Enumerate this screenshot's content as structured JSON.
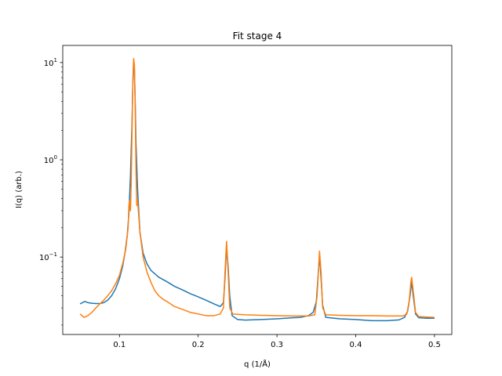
{
  "chart_data": {
    "type": "line",
    "title": "Fit stage 4",
    "xlabel": "q (1/Å)",
    "ylabel": "I(q) (arb.)",
    "xlim": [
      0.028,
      0.522
    ],
    "ylim": [
      0.016,
      15
    ],
    "yscale": "log",
    "grid": false,
    "x_ticks": [
      0.1,
      0.2,
      0.3,
      0.4,
      0.5
    ],
    "x_tick_labels": [
      "0.1",
      "0.2",
      "0.3",
      "0.4",
      "0.5"
    ],
    "y_ticks": [
      0.1,
      1,
      10
    ],
    "y_tick_labels_base": [
      "10",
      "10",
      "10"
    ],
    "y_tick_labels_exp": [
      "−1",
      "0",
      "1"
    ],
    "series": [
      {
        "color": "#1f77b4",
        "points": [
          [
            0.05,
            0.033
          ],
          [
            0.053,
            0.034
          ],
          [
            0.056,
            0.035
          ],
          [
            0.06,
            0.034
          ],
          [
            0.065,
            0.0335
          ],
          [
            0.07,
            0.0333
          ],
          [
            0.075,
            0.0333
          ],
          [
            0.08,
            0.034
          ],
          [
            0.085,
            0.036
          ],
          [
            0.09,
            0.04
          ],
          [
            0.095,
            0.047
          ],
          [
            0.1,
            0.06
          ],
          [
            0.104,
            0.08
          ],
          [
            0.107,
            0.11
          ],
          [
            0.11,
            0.17
          ],
          [
            0.112,
            0.28
          ],
          [
            0.114,
            0.7
          ],
          [
            0.116,
            2.5
          ],
          [
            0.117,
            6.0
          ],
          [
            0.118,
            10.0
          ],
          [
            0.119,
            8.5
          ],
          [
            0.12,
            4.0
          ],
          [
            0.121,
            1.5
          ],
          [
            0.123,
            0.5
          ],
          [
            0.126,
            0.18
          ],
          [
            0.13,
            0.11
          ],
          [
            0.135,
            0.085
          ],
          [
            0.14,
            0.073
          ],
          [
            0.15,
            0.062
          ],
          [
            0.16,
            0.056
          ],
          [
            0.17,
            0.05
          ],
          [
            0.18,
            0.046
          ],
          [
            0.19,
            0.042
          ],
          [
            0.2,
            0.039
          ],
          [
            0.21,
            0.036
          ],
          [
            0.22,
            0.033
          ],
          [
            0.228,
            0.031
          ],
          [
            0.232,
            0.034
          ],
          [
            0.234,
            0.06
          ],
          [
            0.236,
            0.13
          ],
          [
            0.238,
            0.08
          ],
          [
            0.24,
            0.04
          ],
          [
            0.243,
            0.025
          ],
          [
            0.25,
            0.0228
          ],
          [
            0.26,
            0.0225
          ],
          [
            0.28,
            0.0228
          ],
          [
            0.3,
            0.0232
          ],
          [
            0.32,
            0.0238
          ],
          [
            0.33,
            0.024
          ],
          [
            0.34,
            0.025
          ],
          [
            0.346,
            0.027
          ],
          [
            0.35,
            0.035
          ],
          [
            0.352,
            0.06
          ],
          [
            0.354,
            0.105
          ],
          [
            0.356,
            0.06
          ],
          [
            0.358,
            0.032
          ],
          [
            0.362,
            0.024
          ],
          [
            0.38,
            0.0232
          ],
          [
            0.4,
            0.0228
          ],
          [
            0.42,
            0.0222
          ],
          [
            0.44,
            0.0222
          ],
          [
            0.455,
            0.0226
          ],
          [
            0.462,
            0.024
          ],
          [
            0.466,
            0.028
          ],
          [
            0.469,
            0.04
          ],
          [
            0.471,
            0.056
          ],
          [
            0.473,
            0.04
          ],
          [
            0.476,
            0.026
          ],
          [
            0.48,
            0.0238
          ],
          [
            0.49,
            0.0235
          ],
          [
            0.5,
            0.0235
          ]
        ]
      },
      {
        "color": "#ff7f0e",
        "points": [
          [
            0.05,
            0.026
          ],
          [
            0.055,
            0.024
          ],
          [
            0.06,
            0.025
          ],
          [
            0.065,
            0.027
          ],
          [
            0.07,
            0.03
          ],
          [
            0.075,
            0.033
          ],
          [
            0.08,
            0.036
          ],
          [
            0.085,
            0.04
          ],
          [
            0.09,
            0.045
          ],
          [
            0.095,
            0.053
          ],
          [
            0.1,
            0.065
          ],
          [
            0.104,
            0.085
          ],
          [
            0.108,
            0.12
          ],
          [
            0.111,
            0.2
          ],
          [
            0.112,
            0.34
          ],
          [
            0.113,
            0.38
          ],
          [
            0.114,
            0.3
          ],
          [
            0.115,
            0.6
          ],
          [
            0.116,
            2.0
          ],
          [
            0.117,
            6.5
          ],
          [
            0.118,
            11.0
          ],
          [
            0.119,
            9.5
          ],
          [
            0.12,
            3.5
          ],
          [
            0.121,
            0.8
          ],
          [
            0.122,
            0.34
          ],
          [
            0.123,
            0.38
          ],
          [
            0.124,
            0.3
          ],
          [
            0.126,
            0.18
          ],
          [
            0.13,
            0.1
          ],
          [
            0.135,
            0.07
          ],
          [
            0.14,
            0.055
          ],
          [
            0.145,
            0.045
          ],
          [
            0.15,
            0.04
          ],
          [
            0.155,
            0.037
          ],
          [
            0.16,
            0.035
          ],
          [
            0.17,
            0.031
          ],
          [
            0.18,
            0.029
          ],
          [
            0.19,
            0.027
          ],
          [
            0.2,
            0.026
          ],
          [
            0.21,
            0.025
          ],
          [
            0.22,
            0.025
          ],
          [
            0.228,
            0.026
          ],
          [
            0.232,
            0.03
          ],
          [
            0.234,
            0.07
          ],
          [
            0.236,
            0.145
          ],
          [
            0.238,
            0.07
          ],
          [
            0.24,
            0.03
          ],
          [
            0.244,
            0.026
          ],
          [
            0.26,
            0.0255
          ],
          [
            0.28,
            0.0252
          ],
          [
            0.3,
            0.025
          ],
          [
            0.32,
            0.0248
          ],
          [
            0.34,
            0.0248
          ],
          [
            0.348,
            0.0255
          ],
          [
            0.351,
            0.04
          ],
          [
            0.353,
            0.08
          ],
          [
            0.354,
            0.115
          ],
          [
            0.356,
            0.07
          ],
          [
            0.358,
            0.03
          ],
          [
            0.362,
            0.0255
          ],
          [
            0.38,
            0.0252
          ],
          [
            0.4,
            0.025
          ],
          [
            0.42,
            0.025
          ],
          [
            0.44,
            0.0248
          ],
          [
            0.46,
            0.0248
          ],
          [
            0.465,
            0.026
          ],
          [
            0.468,
            0.036
          ],
          [
            0.47,
            0.055
          ],
          [
            0.471,
            0.062
          ],
          [
            0.473,
            0.045
          ],
          [
            0.476,
            0.027
          ],
          [
            0.48,
            0.0245
          ],
          [
            0.49,
            0.0242
          ],
          [
            0.5,
            0.024
          ]
        ]
      }
    ]
  }
}
